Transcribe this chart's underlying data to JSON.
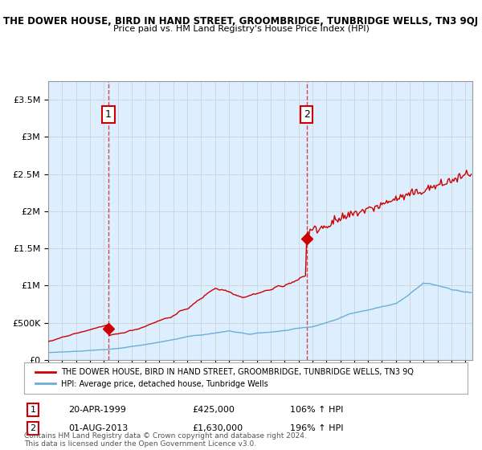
{
  "title": "THE DOWER HOUSE, BIRD IN HAND STREET, GROOMBRIDGE, TUNBRIDGE WELLS, TN3 9QJ",
  "subtitle": "Price paid vs. HM Land Registry's House Price Index (HPI)",
  "legend_line1": "THE DOWER HOUSE, BIRD IN HAND STREET, GROOMBRIDGE, TUNBRIDGE WELLS, TN3 9Q",
  "legend_line2": "HPI: Average price, detached house, Tunbridge Wells",
  "annotation1_date": "20-APR-1999",
  "annotation1_price": "£425,000",
  "annotation1_hpi": "106% ↑ HPI",
  "annotation2_date": "01-AUG-2013",
  "annotation2_price": "£1,630,000",
  "annotation2_hpi": "196% ↑ HPI",
  "footnote": "Contains HM Land Registry data © Crown copyright and database right 2024.\nThis data is licensed under the Open Government Licence v3.0.",
  "sale1_year": 1999.3,
  "sale1_value": 425000,
  "sale2_year": 2013.58,
  "sale2_value": 1630000,
  "hpi_color": "#6baed6",
  "price_color": "#cc0000",
  "bg_color": "#ddeeff",
  "plot_bg": "#ffffff",
  "ylim_max": 3750000,
  "xmin": 1995,
  "xmax": 2025.5
}
